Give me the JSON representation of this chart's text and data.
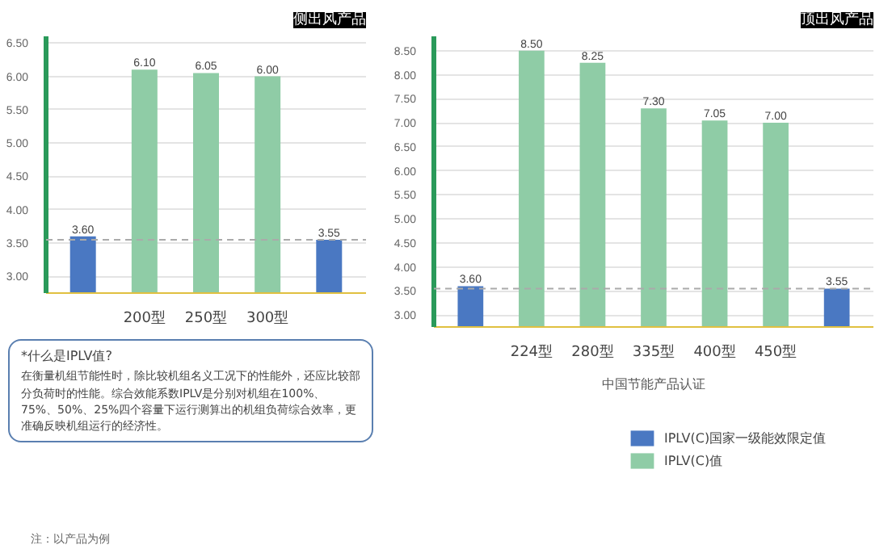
{
  "chart_data": [
    {
      "type": "bar",
      "title": "侧出风产品",
      "categories": [
        null,
        "200型",
        "250型",
        "300型",
        null
      ],
      "series": [
        {
          "color": "#4a78c2",
          "values": [
            3.6,
            null,
            null,
            null,
            3.55
          ],
          "value_labels": [
            "3.60",
            null,
            null,
            null,
            "3.55"
          ]
        },
        {
          "color": "#8fcca6",
          "values": [
            null,
            6.1,
            6.05,
            6.0,
            null
          ],
          "value_labels": [
            null,
            "6.10",
            "6.05",
            "6.00",
            null
          ]
        }
      ],
      "ylim": [
        2.75,
        6.6
      ],
      "yticks": [
        {
          "value": 3,
          "label": "3.00"
        },
        {
          "value": 3.5,
          "label": "3.50"
        },
        {
          "value": 4,
          "label": "4.00"
        },
        {
          "value": 4.5,
          "label": "4.50"
        },
        {
          "value": 5,
          "label": "5.00"
        },
        {
          "value": 5.5,
          "label": "5.50"
        },
        {
          "value": 6,
          "label": "6.00"
        },
        {
          "value": 6.5,
          "label": "6.50"
        }
      ],
      "grid": "y",
      "ref_lines": [
        {
          "axis": "y",
          "value": 3.55,
          "color": "#aaaaaa",
          "line_style": "dashed"
        }
      ],
      "annotations": [
        "*什么是IPLV值?",
        "在衡量机组节能性时，除比较机组名义工况下的性能外，还应比较部分负荷时的性能。综合效能系数IPLV是分别对机组在100%、75%、50%、25%四个容量下运行测算出的机组负荷综合效率，更准确反映机组运行的经济性。",
        "注：以产品为例"
      ]
    },
    {
      "type": "bar",
      "title": "顶出风产品",
      "categories": [
        null,
        "224型",
        "280型",
        "335型",
        "400型",
        "450型",
        null
      ],
      "series": [
        {
          "name": "IPLV(C)国家一级能效限定值",
          "color": "#4a78c2",
          "values": [
            3.6,
            null,
            null,
            null,
            null,
            null,
            3.55
          ],
          "value_labels": [
            "3.60",
            null,
            null,
            null,
            null,
            null,
            "3.55"
          ]
        },
        {
          "name": "IPLV(C)值",
          "color": "#8fcca6",
          "values": [
            null,
            8.5,
            8.25,
            7.3,
            7.05,
            7.0,
            null
          ],
          "value_labels": [
            null,
            "8.50",
            "8.25",
            "7.30",
            "7.05",
            "7.00",
            null
          ]
        }
      ],
      "ylim": [
        2.75,
        8.8
      ],
      "yticks": [
        {
          "value": 3,
          "label": "3.00"
        },
        {
          "value": 3.5,
          "label": "3.50"
        },
        {
          "value": 4,
          "label": "4.00"
        },
        {
          "value": 4.5,
          "label": "4.50"
        },
        {
          "value": 5,
          "label": "5.00"
        },
        {
          "value": 5.5,
          "label": "5.50"
        },
        {
          "value": 6,
          "label": "6.00"
        },
        {
          "value": 6.5,
          "label": "6.50"
        },
        {
          "value": 7,
          "label": "7.00"
        },
        {
          "value": 7.5,
          "label": "7.50"
        },
        {
          "value": 8,
          "label": "8.00"
        },
        {
          "value": 8.5,
          "label": "8.50"
        }
      ],
      "grid": "y",
      "ref_lines": [
        {
          "axis": "y",
          "value": 3.55,
          "color": "#aaaaaa",
          "line_style": "dashed"
        }
      ],
      "legend": "bottom",
      "annotations": [
        "中国节能产品认证"
      ]
    }
  ]
}
